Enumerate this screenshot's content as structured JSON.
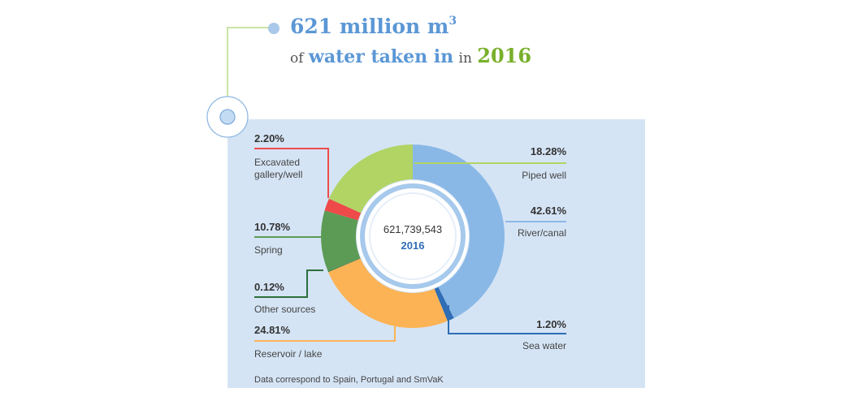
{
  "headline": {
    "number": "621",
    "unit": "million m",
    "unit_power": "3",
    "prefix": "of",
    "subject": "water taken in",
    "connector": "in",
    "year": "2016"
  },
  "footnote": "Data correspond to Spain, Portugal and SmVaK",
  "center": {
    "total": "621,739,543",
    "year": "2016"
  },
  "chart_data": {
    "type": "pie",
    "donut": true,
    "total": 621739543,
    "year": "2016",
    "series": [
      {
        "name": "River/canal",
        "value": 42.61,
        "label": "42.61%",
        "color": "#8ab8e6"
      },
      {
        "name": "Sea water",
        "value": 1.2,
        "label": "1.20%",
        "color": "#2f6db5"
      },
      {
        "name": "Reservoir / lake",
        "value": 24.81,
        "label": "24.81%",
        "color": "#fbb355"
      },
      {
        "name": "Other sources",
        "value": 0.12,
        "label": "0.12%",
        "color": "#2d6e3a"
      },
      {
        "name": "Spring",
        "value": 10.78,
        "label": "10.78%",
        "color": "#5c9b55"
      },
      {
        "name": "Excavated gallery/well",
        "value": 2.2,
        "label": "2.20%",
        "color": "#ee4a4a"
      },
      {
        "name": "Piped well",
        "value": 18.28,
        "label": "18.28%",
        "color": "#b1d465"
      }
    ],
    "label_rows": [
      {
        "series": 6,
        "pct": "18.28%",
        "name_lines": [
          "Piped well"
        ],
        "side": "right"
      },
      {
        "series": 0,
        "pct": "42.61%",
        "name_lines": [
          "River/canal"
        ],
        "side": "right"
      },
      {
        "series": 1,
        "pct": "1.20%",
        "name_lines": [
          "Sea water"
        ],
        "side": "right"
      },
      {
        "series": 5,
        "pct": "2.20%",
        "name_lines": [
          "Excavated",
          "gallery/well"
        ],
        "side": "left"
      },
      {
        "series": 4,
        "pct": "10.78%",
        "name_lines": [
          "Spring"
        ],
        "side": "left"
      },
      {
        "series": 3,
        "pct": "0.12%",
        "name_lines": [
          "Other sources"
        ],
        "side": "left"
      },
      {
        "series": 2,
        "pct": "24.81%",
        "name_lines": [
          "Reservoir / lake"
        ],
        "side": "left"
      }
    ]
  },
  "colors": {
    "panel": "#d5e4f5",
    "accent_blue": "#5b97d5",
    "accent_green": "#78b02b",
    "connector_green": "#b8dc8a",
    "hole_ring": "#a6c9ec"
  }
}
